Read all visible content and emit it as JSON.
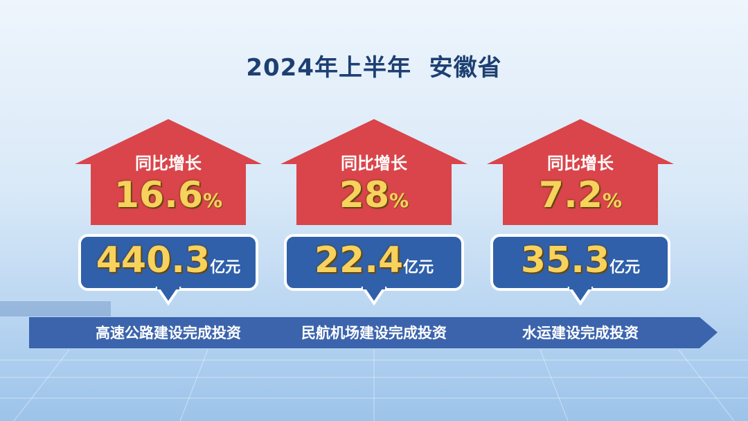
{
  "title": "2024年上半年  安徽省",
  "items": [
    {
      "growth_label": "同比增长",
      "growth": "16.6",
      "growth_unit": "%",
      "amount": "440.3",
      "amount_unit": "亿元",
      "caption": "高速公路建设完成投资"
    },
    {
      "growth_label": "同比增长",
      "growth": "28",
      "growth_unit": "%",
      "amount": "22.4",
      "amount_unit": "亿元",
      "caption": "民航机场建设完成投资"
    },
    {
      "growth_label": "同比增长",
      "growth": "7.2",
      "growth_unit": "%",
      "amount": "35.3",
      "amount_unit": "亿元",
      "caption": "水运建设完成投资"
    }
  ]
}
